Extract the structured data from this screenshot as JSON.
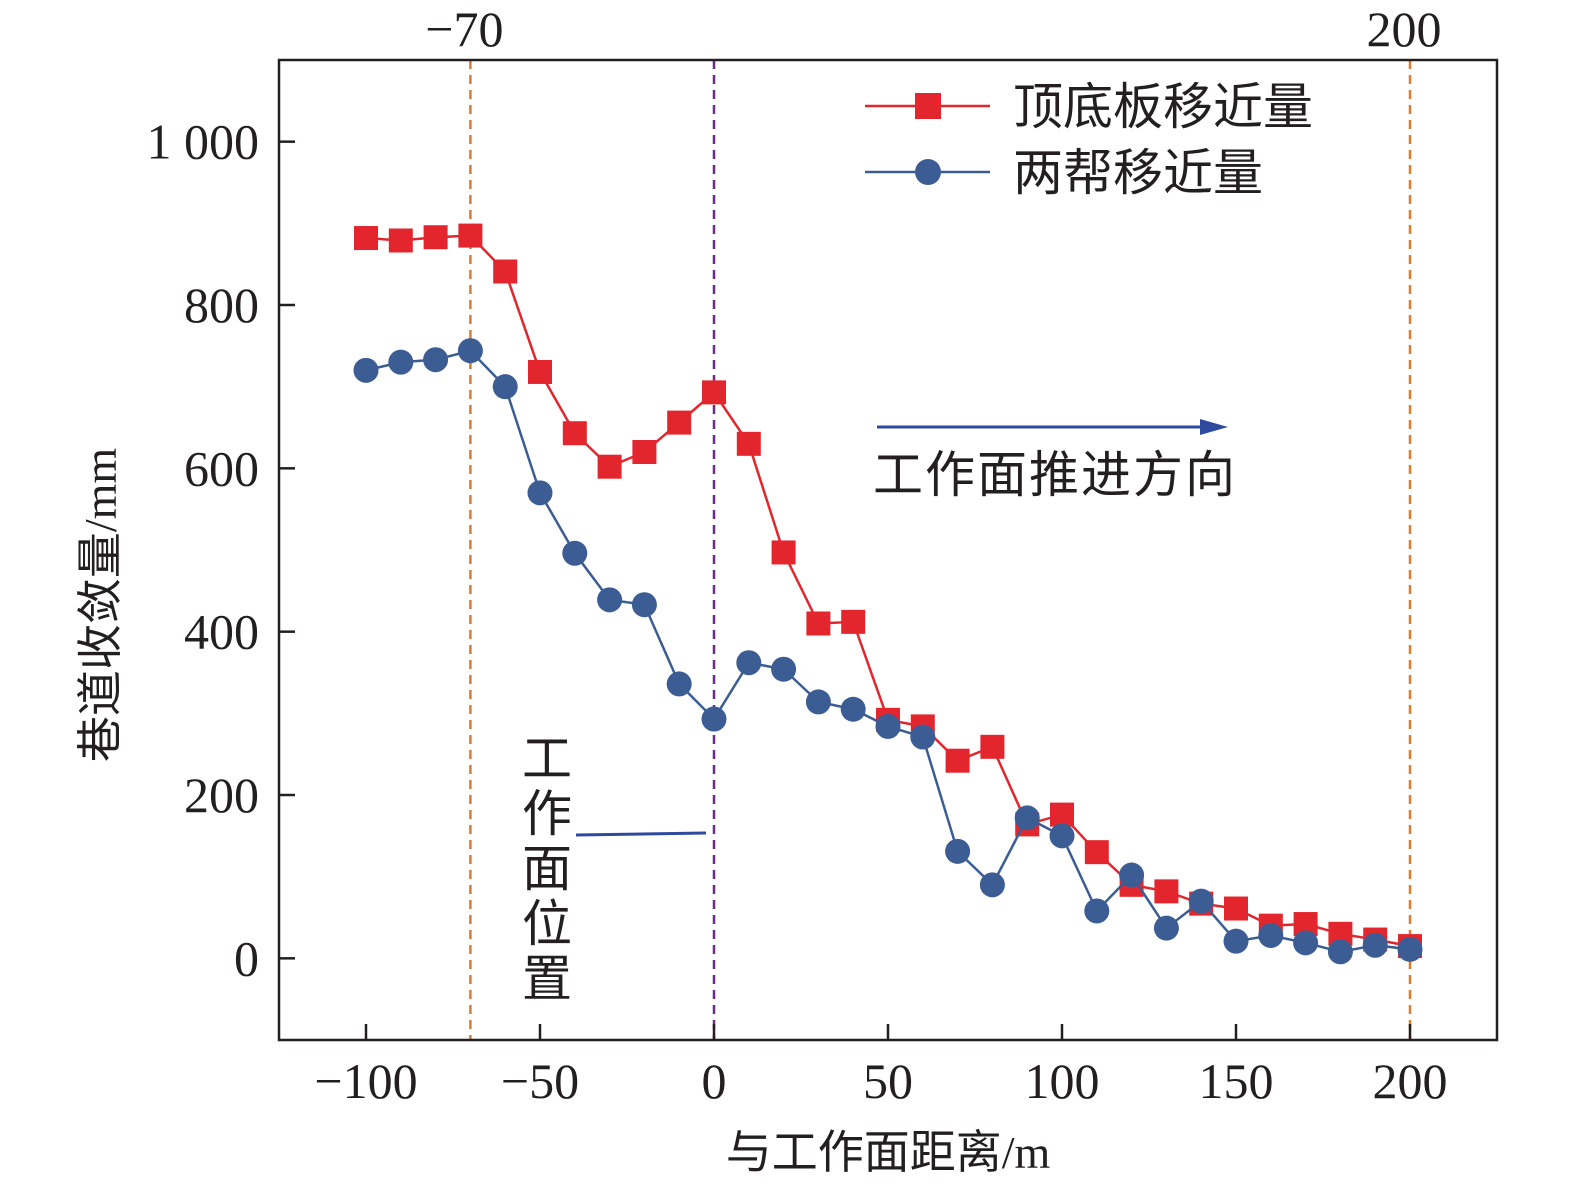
{
  "chart_data": {
    "type": "line",
    "title": "",
    "xlabel": "与工作面距离/m",
    "ylabel": "巷道收敛量/mm",
    "xlim": [
      -125,
      225
    ],
    "ylim": [
      -100,
      1100
    ],
    "xticks": [
      -100,
      -50,
      0,
      50,
      100,
      150,
      200
    ],
    "xtick_labels": [
      "−100",
      "−50",
      "0",
      "50",
      "100",
      "150",
      "200"
    ],
    "yticks": [
      0,
      200,
      400,
      600,
      800,
      1000
    ],
    "ytick_labels": [
      "0",
      "200",
      "400",
      "600",
      "800",
      "1 000"
    ],
    "top_ticks": [
      -70,
      200
    ],
    "top_tick_labels": [
      "−70",
      "200"
    ],
    "x": [
      -100,
      -90,
      -80,
      -70,
      -60,
      -50,
      -40,
      -30,
      -20,
      -10,
      0,
      10,
      20,
      30,
      40,
      50,
      60,
      70,
      80,
      90,
      100,
      110,
      120,
      130,
      140,
      150,
      160,
      170,
      180,
      190,
      200
    ],
    "series": [
      {
        "name": "顶底板移近量",
        "color": "#e3262d",
        "marker": "square",
        "values": [
          882,
          879,
          883,
          885,
          841,
          718,
          643,
          602,
          620,
          656,
          693,
          630,
          497,
          410,
          412,
          292,
          284,
          242,
          259,
          164,
          176,
          130,
          90,
          82,
          67,
          61,
          40,
          42,
          30,
          23,
          15
        ]
      },
      {
        "name": "两帮移近量",
        "color": "#3b5d93",
        "marker": "circle",
        "values": [
          720,
          730,
          733,
          744,
          700,
          570,
          496,
          439,
          433,
          336,
          293,
          362,
          354,
          314,
          305,
          284,
          271,
          131,
          90,
          172,
          150,
          58,
          102,
          37,
          70,
          21,
          28,
          19,
          8,
          16,
          11
        ]
      }
    ],
    "reference_lines": [
      {
        "x": -70,
        "color": "#e07b2c",
        "style": "dashed"
      },
      {
        "x": 0,
        "color": "#6c2a8c",
        "style": "dashed"
      },
      {
        "x": 200,
        "color": "#e07b2c",
        "style": "dashed"
      }
    ],
    "annotations": {
      "face_position": "工作面位置",
      "direction": "工作面推进方向",
      "arrow_color": "#2e4a9e"
    },
    "legend_position": "top-right",
    "grid": false
  }
}
